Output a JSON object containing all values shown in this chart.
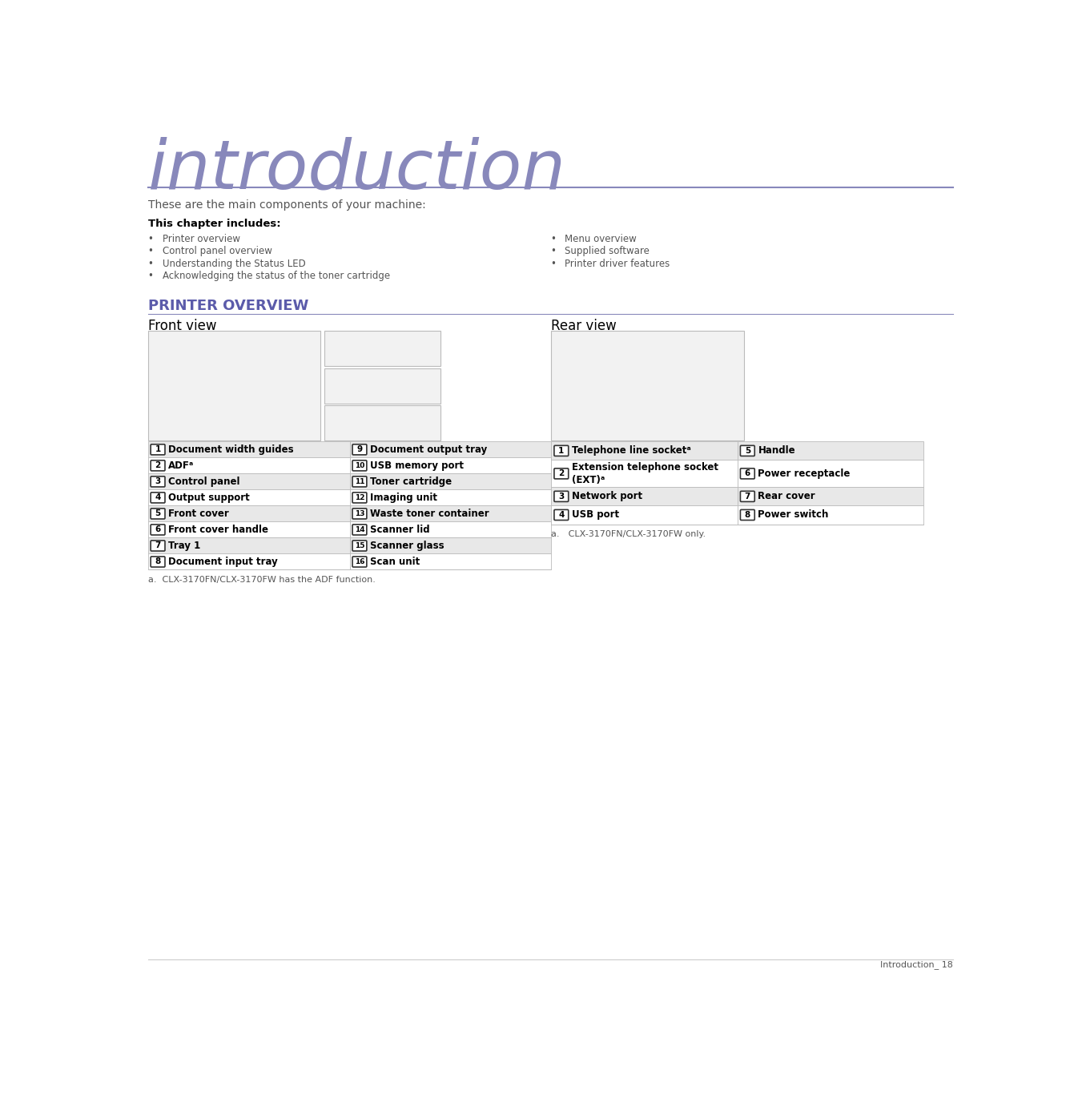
{
  "title": "introduction",
  "title_color": "#8888BB",
  "line_color": "#8888BB",
  "subtitle": "These are the main components of your machine:",
  "subtitle_color": "#555555",
  "chapter_header": "This chapter includes:",
  "left_bullets": [
    "Printer overview",
    "Control panel overview",
    "Understanding the Status LED",
    "Acknowledging the status of the toner cartridge"
  ],
  "right_bullets": [
    "Menu overview",
    "Supplied software",
    "Printer driver features"
  ],
  "section_title": "PRINTER OVERVIEW",
  "section_title_color": "#5B5BAA",
  "front_view_label": "Front view",
  "rear_view_label": "Rear view",
  "front_table_rows": [
    [
      "1",
      "Document width guides",
      "9",
      "Document output tray"
    ],
    [
      "2",
      "ADFᵃ",
      "10",
      "USB memory port"
    ],
    [
      "3",
      "Control panel",
      "11",
      "Toner cartridge"
    ],
    [
      "4",
      "Output support",
      "12",
      "Imaging unit"
    ],
    [
      "5",
      "Front cover",
      "13",
      "Waste toner container"
    ],
    [
      "6",
      "Front cover handle",
      "14",
      "Scanner lid"
    ],
    [
      "7",
      "Tray 1",
      "15",
      "Scanner glass"
    ],
    [
      "8",
      "Document input tray",
      "16",
      "Scan unit"
    ]
  ],
  "front_footnote": "a.  CLX-3170FN/CLX-3170FW has the ADF function.",
  "rear_table_rows": [
    [
      "1",
      "Telephone line socketᵃ",
      "5",
      "Handle"
    ],
    [
      "2",
      "Extension telephone socket\n(EXT)ᵃ",
      "6",
      "Power receptacle"
    ],
    [
      "3",
      "Network port",
      "7",
      "Rear cover"
    ],
    [
      "4",
      "USB port",
      "8",
      "Power switch"
    ]
  ],
  "rear_footnote": "a. CLX-3170FN/CLX-3170FW only.",
  "page_footer": "Introduction_ 18",
  "bg_color": "#FFFFFF",
  "table_bg_even": "#E8E8E8",
  "table_bg_odd": "#FFFFFF",
  "table_border": "#BBBBBB",
  "badge_edge": "#333333",
  "badge_face": "#FFFFFF",
  "text_dark": "#000000",
  "text_mid": "#555555",
  "bullet_char": "•"
}
